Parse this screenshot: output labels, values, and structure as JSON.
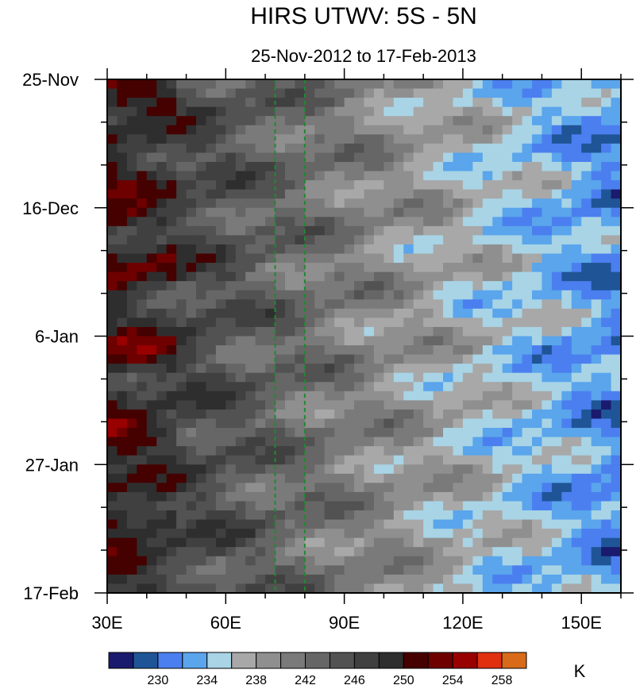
{
  "chart_data": {
    "type": "heatmap",
    "title": "HIRS UTWV: 5S - 5N",
    "subtitle": "25-Nov-2012 to 17-Feb-2013",
    "xlabel": "",
    "ylabel": "",
    "x_range": [
      30,
      160
    ],
    "x_ticks": [
      {
        "value": 30,
        "label": "30E"
      },
      {
        "value": 60,
        "label": "60E"
      },
      {
        "value": 90,
        "label": "90E"
      },
      {
        "value": 120,
        "label": "120E"
      },
      {
        "value": 150,
        "label": "150E"
      }
    ],
    "y_range_days": [
      0,
      84
    ],
    "y_ticks": [
      {
        "day": 0,
        "label": "25-Nov"
      },
      {
        "day": 21,
        "label": "16-Dec"
      },
      {
        "day": 42,
        "label": "6-Jan"
      },
      {
        "day": 63,
        "label": "27-Jan"
      },
      {
        "day": 84,
        "label": "17-Feb"
      }
    ],
    "reference_lines_lon": [
      72.5,
      80
    ],
    "reference_line_color": "#1f8a2e",
    "colorbar": {
      "units": "K",
      "colors": [
        "#1a1a6e",
        "#1f5596",
        "#4b7fef",
        "#5aa5ec",
        "#a8d4e6",
        "#a8a8a8",
        "#8f8f8f",
        "#7a7a7a",
        "#666666",
        "#525252",
        "#404040",
        "#2e2e2e",
        "#450000",
        "#6e0000",
        "#990000",
        "#e03010",
        "#d86a1a"
      ],
      "tick_labels": [
        "230",
        "234",
        "238",
        "242",
        "246",
        "250",
        "254",
        "258"
      ]
    }
  }
}
